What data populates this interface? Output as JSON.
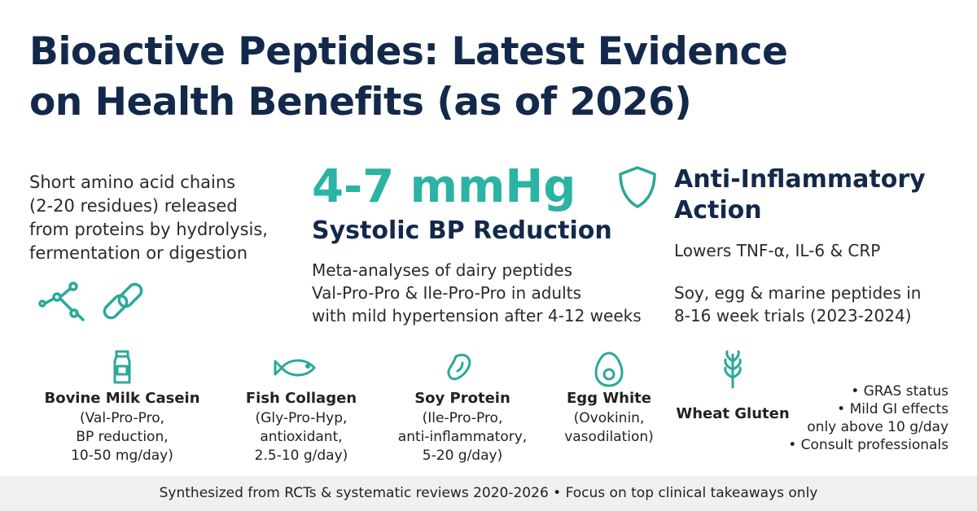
{
  "header": {
    "title_lines": [
      "Bioactive Peptides: Latest Evidence",
      "on Health Benefits (as of 2026)"
    ]
  },
  "intro": {
    "lines": [
      "Short amino acid chains",
      "(2-20 residues) released",
      "from proteins by hydrolysis,",
      "fermentation or digestion"
    ]
  },
  "stat": {
    "value": "4-7 mmHg",
    "label": "Systolic BP Reduction",
    "lines": [
      "Meta-analyses of dairy peptides",
      "Val-Pro-Pro & Ile-Pro-Pro in adults",
      "with mild hypertension after 4-12 weeks"
    ]
  },
  "inflammation": {
    "title_lines": [
      "Anti-Inflammatory",
      "Action"
    ],
    "markers": "Lowers TNF-α, IL-6 & CRP",
    "lines": [
      "Soy, egg & marine peptides in",
      "8-16 week trials (2023-2024)"
    ]
  },
  "sources": [
    {
      "name": "Bovine Milk Casein",
      "details": [
        "(Val-Pro-Pro,",
        "BP reduction,",
        "10-50 mg/day)"
      ]
    },
    {
      "name": "Fish Collagen",
      "details": [
        "(Gly-Pro-Hyp,",
        "antioxidant,",
        "2.5-10 g/day)"
      ]
    },
    {
      "name": "Soy Protein",
      "details": [
        "(Ile-Pro-Pro,",
        "anti-inflammatory,",
        "5-20 g/day)"
      ]
    },
    {
      "name": "Egg White",
      "details": [
        "(Ovokinin,",
        "vasodilation)"
      ]
    },
    {
      "name": "Wheat Gluten"
    }
  ],
  "notes": [
    "• GRAS status",
    "• Mild GI effects",
    "only above 10 g/day",
    "• Consult professionals"
  ],
  "footer": "Synthesized from RCTs & systematic reviews 2020-2026 • Focus on top clinical takeaways only"
}
